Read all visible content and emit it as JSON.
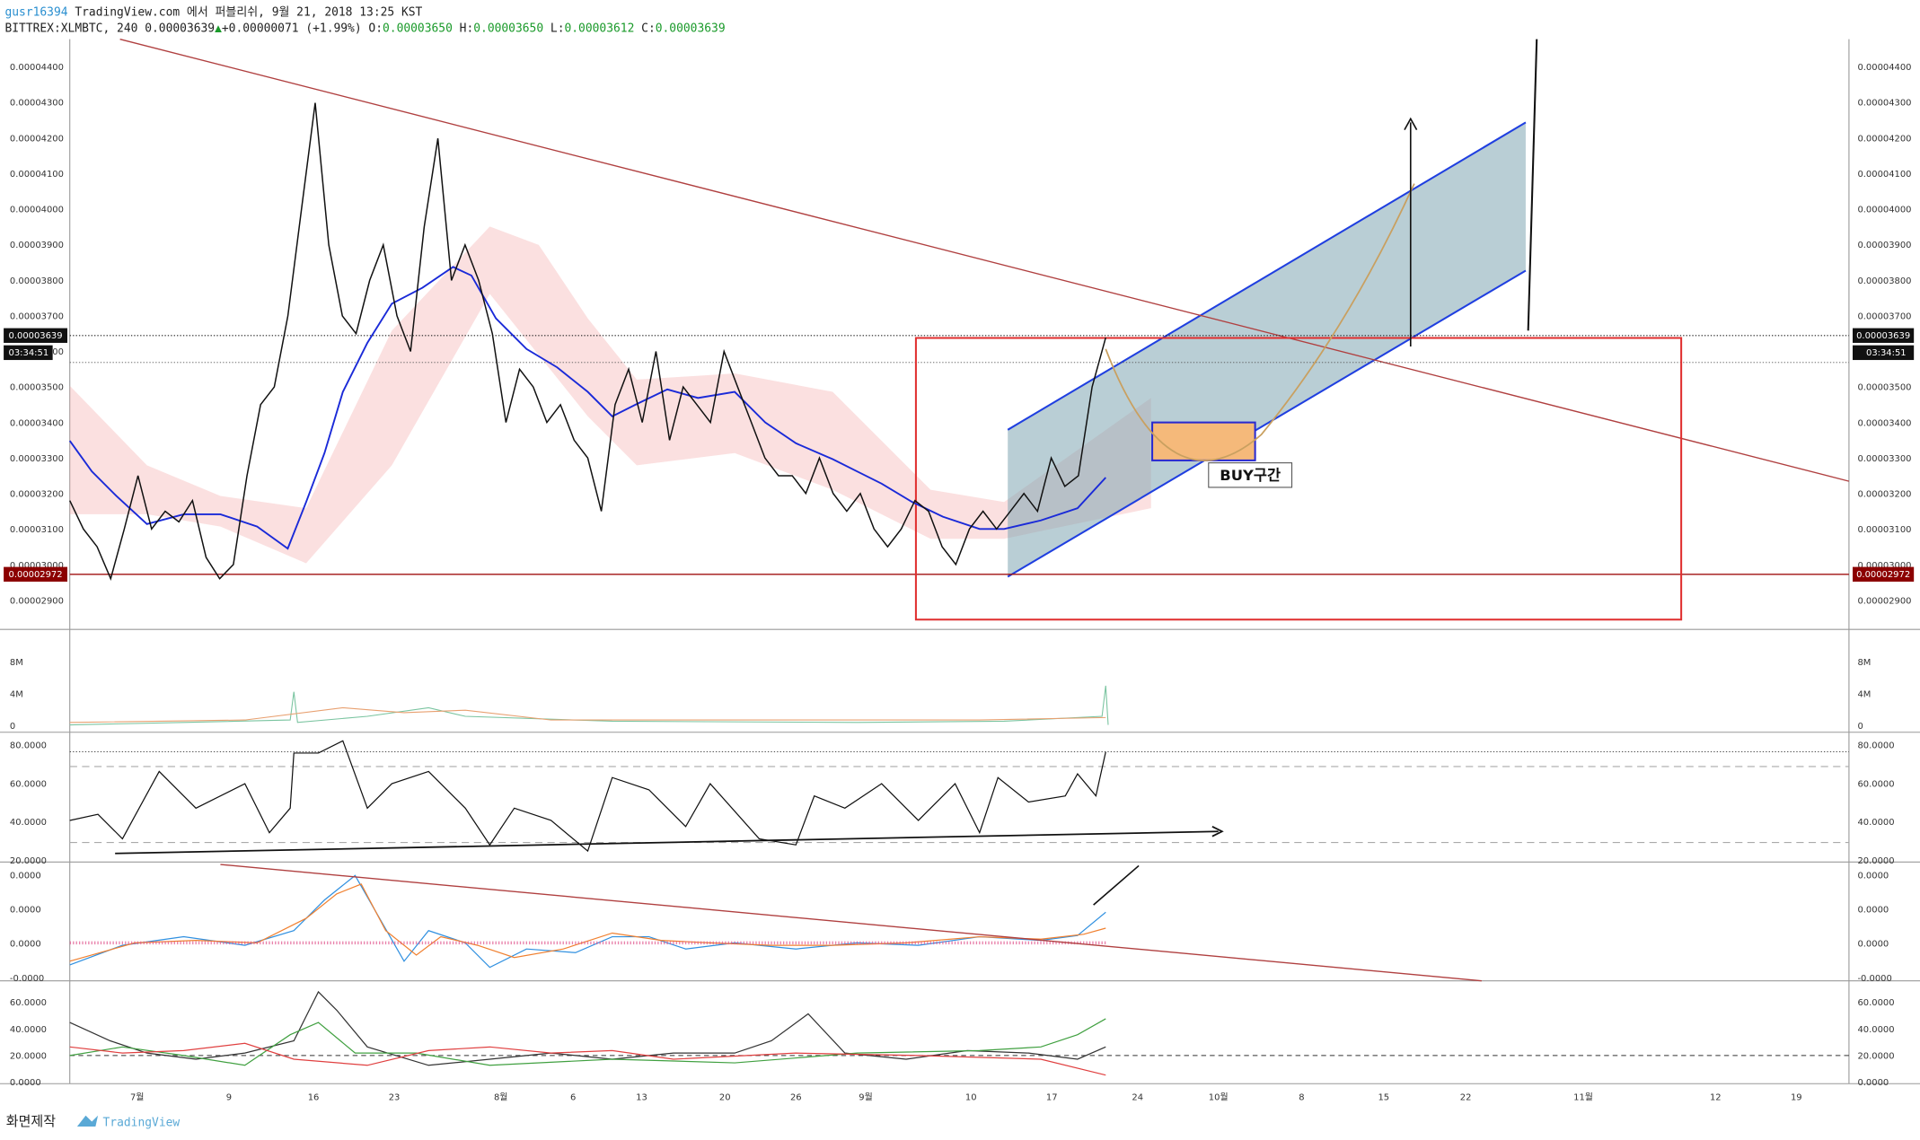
{
  "header": {
    "author": "gusr16394",
    "published": " TradingView.com 에서 퍼블리쉬, 9월 21, 2018 13:25 KST",
    "symbol": "BITTREX:XLMBTC, 240",
    "last": "0.00003639",
    "change": "+0.00000071 (+1.99%)",
    "o_label": "O:",
    "open": "0.00003650",
    "h_label": "H:",
    "high": "0.00003650",
    "l_label": "L:",
    "low": "0.00003612",
    "c_label": "C:",
    "close": "0.00003639"
  },
  "price_axis": [
    "0.00004400",
    "0.00004300",
    "0.00004200",
    "0.00004100",
    "0.00004000",
    "0.00003900",
    "0.00003800",
    "0.00003700",
    "0.00003600",
    "0.00003500",
    "0.00003400",
    "0.00003300",
    "0.00003200",
    "0.00003100",
    "0.00003000",
    "0.00002900"
  ],
  "current_price_tag": "0.00003639",
  "countdown": "03:34:51",
  "support_tag": "0.00002972",
  "annotation": "BUY구간",
  "price_trace": [
    3180,
    3100,
    3050,
    2960,
    3100,
    3250,
    3100,
    3150,
    3120,
    3180,
    3020,
    2960,
    3000,
    3250,
    3450,
    3500,
    3700,
    4000,
    4300,
    3900,
    3700,
    3650,
    3800,
    3900,
    3700,
    3600,
    3950,
    4200,
    3800,
    3900,
    3800,
    3650,
    3400,
    3550,
    3500,
    3400,
    3450,
    3350,
    3300,
    3150,
    3450,
    3550,
    3400,
    3600,
    3350,
    3500,
    3450,
    3400,
    3600,
    3500,
    3400,
    3300,
    3250,
    3250,
    3200,
    3300,
    3200,
    3150,
    3200,
    3100,
    3050,
    3100,
    3180,
    3150,
    3050,
    3000,
    3100,
    3150,
    3100,
    3150,
    3200,
    3150,
    3300,
    3220,
    3250,
    3500,
    3639
  ],
  "volume_axis": [
    "8M",
    "4M",
    "0"
  ],
  "rsi_axis": [
    "80.0000",
    "60.0000",
    "40.0000",
    "20.0000"
  ],
  "macd_axis": [
    "0.0000",
    "0.0000",
    "0.0000",
    "-0.0000"
  ],
  "dmi_axis": [
    "60.0000",
    "40.0000",
    "20.0000",
    "0.0000"
  ],
  "dates": [
    "7월",
    "9",
    "16",
    "23",
    "8월",
    "6",
    "13",
    "20",
    "26",
    "9월",
    "10",
    "17",
    "24",
    "10월",
    "8",
    "15",
    "22",
    "11월",
    "12",
    "19"
  ],
  "footer": {
    "caption": "화면제작",
    "brand": "TradingView"
  }
}
